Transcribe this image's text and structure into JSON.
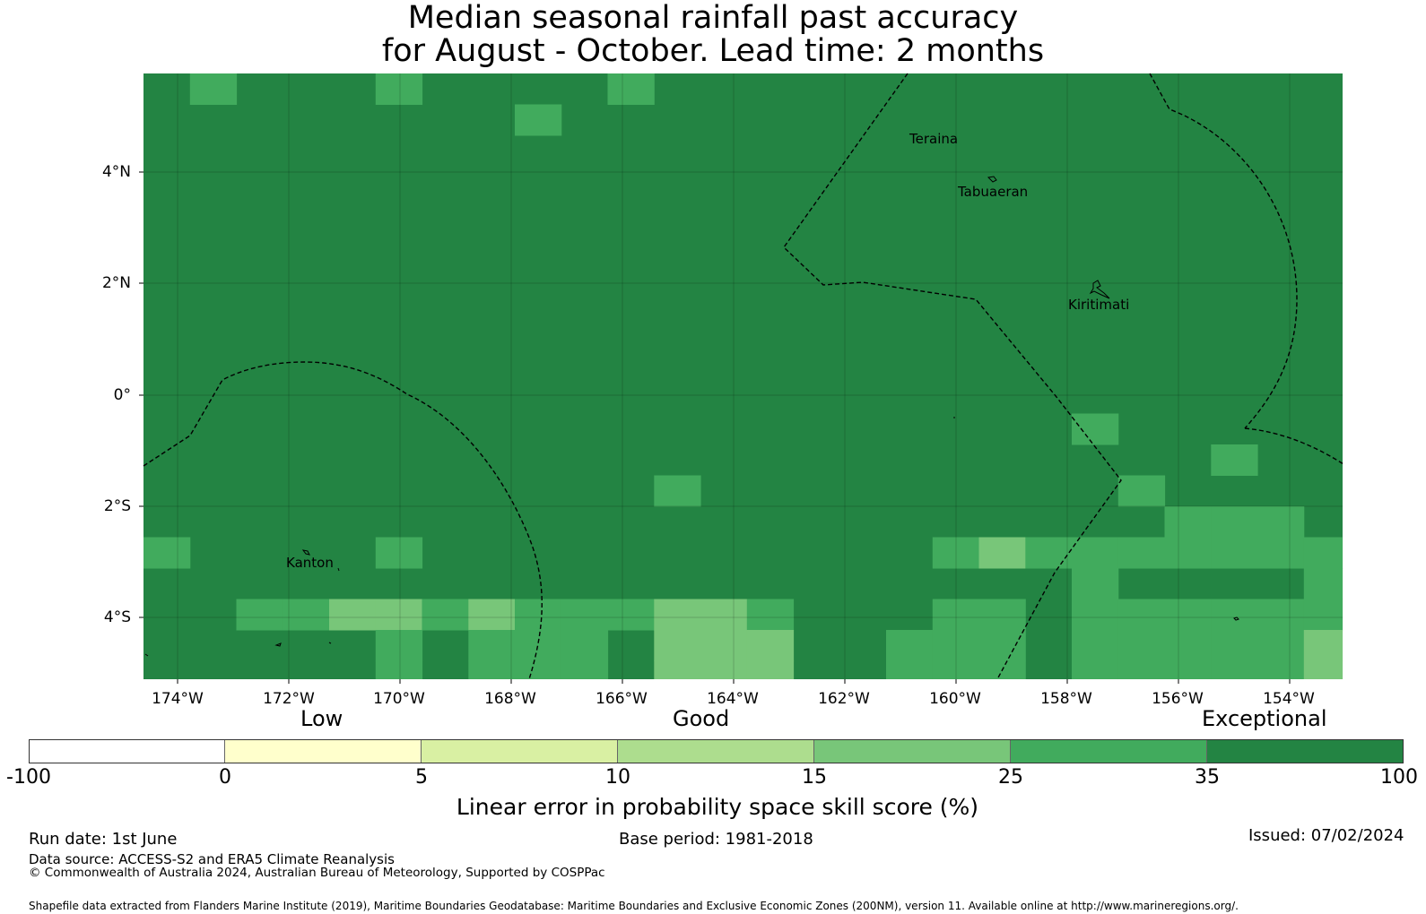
{
  "title": {
    "line1": "Median seasonal rainfall past accuracy",
    "line2": "for August - October. Lead time: 2 months"
  },
  "map": {
    "lat_labels": [
      "4°N",
      "2°N",
      "0°",
      "2°S",
      "4°S"
    ],
    "lon_labels": [
      "174°W",
      "172°W",
      "170°W",
      "168°W",
      "166°W",
      "164°W",
      "162°W",
      "160°W",
      "158°W",
      "156°W",
      "154°W"
    ],
    "places": [
      "Teraina",
      "Tabuaeran",
      "Kiritimati",
      "Kanton"
    ],
    "colors": [
      "#ffffff",
      "#ffffcc",
      "#d9f0a3",
      "#addd8e",
      "#78c679",
      "#41ab5d",
      "#238443"
    ],
    "grid_notes": "Cells coloured by skill class index into colors; background class 6 (35-100%)"
  },
  "legend": {
    "categories": [
      "Low",
      "Good",
      "Exceptional"
    ],
    "ticks": [
      "-100",
      "0",
      "5",
      "10",
      "15",
      "25",
      "35",
      "100"
    ],
    "colors": [
      "#ffffff",
      "#ffffcc",
      "#d9f0a3",
      "#addd8e",
      "#78c679",
      "#41ab5d",
      "#238443"
    ],
    "axis_label": "Linear error in probability space skill score (%)"
  },
  "footer": {
    "run_date": "Run date: 1st June",
    "base_period": "Base period: 1981-2018",
    "issued": "Issued: 07/02/2024",
    "data_source": "Data source: ACCESS-S2 and ERA5 Climate Reanalysis",
    "copyright": "© Commonwealth of Australia 2024, Australian Bureau of Meteorology, Supported by COSPPac",
    "shapefile": "Shapefile data extracted from Flanders Marine Institute (2019), Maritime Boundaries Geodatabase: Maritime Boundaries and Exclusive Economic Zones (200NM), version 11. Available online at http://www.marineregions.org/."
  }
}
